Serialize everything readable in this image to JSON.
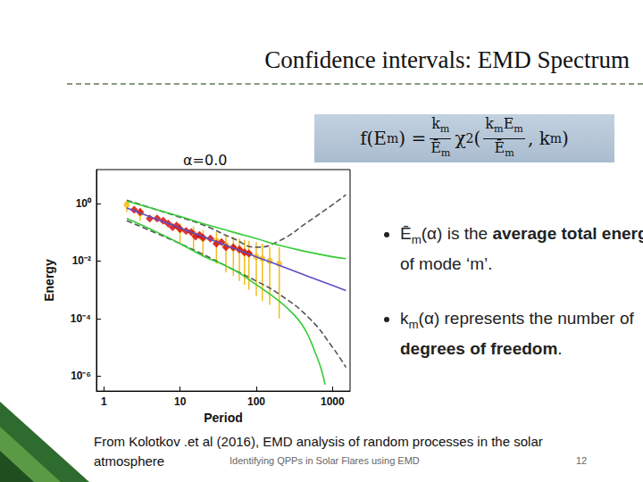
{
  "slide": {
    "title": "Confidence intervals: EMD Spectrum",
    "formula": [
      {
        "text": "f(E"
      },
      {
        "sub": "m"
      },
      {
        "text": ") = "
      },
      {
        "frac": {
          "num": [
            {
              "text": "k"
            },
            {
              "sub": "m"
            }
          ],
          "den": [
            {
              "text": "Ē"
            },
            {
              "sub": "m"
            }
          ]
        }
      },
      {
        "text": "χ"
      },
      {
        "sup": "2"
      },
      {
        "text": " ("
      },
      {
        "frac": {
          "num": [
            {
              "text": "k"
            },
            {
              "sub": "m"
            },
            {
              "text": "E"
            },
            {
              "sub": "m"
            }
          ],
          "den": [
            {
              "text": "Ē"
            },
            {
              "sub": "m"
            }
          ]
        }
      },
      {
        "text": ", k"
      },
      {
        "sub": "m"
      },
      {
        "text": ")"
      }
    ],
    "bullets": [
      [
        {
          "text": "Ē"
        },
        {
          "sub": "m"
        },
        {
          "text": "(α) is the "
        },
        {
          "bold": "average total energy"
        },
        {
          "text": " of mode ‘m’."
        }
      ],
      [
        {
          "text": "k"
        },
        {
          "sub": "m"
        },
        {
          "text": "(α) represents the number of "
        },
        {
          "bold": "degrees of freedom"
        },
        {
          "text": "."
        }
      ]
    ],
    "source": "From Kolotkov .et al (2016), EMD analysis of random processes in the solar atmosphere",
    "footer": "Identifying QPPs in Solar Flares using EMD",
    "page": "12"
  },
  "chart_data": {
    "type": "scatter",
    "title": "α=0.0",
    "x_label": "Period",
    "y_label": "Energy",
    "log": true,
    "grid": false,
    "xlim": [
      0.8,
      1700
    ],
    "xticks": [
      1,
      10,
      100,
      1000
    ],
    "ylim": [
      3e-07,
      15
    ],
    "yticks": [
      {
        "value": 1,
        "label": "10⁰"
      },
      {
        "value": 0.01,
        "label": "10⁻²"
      },
      {
        "value": 0.0001,
        "label": "10⁻⁴"
      },
      {
        "value": 1e-06,
        "label": "10⁻⁶"
      }
    ],
    "series": [
      {
        "type": "scatter",
        "marker": "circle",
        "color": "#f2bd1d",
        "x": [
          2,
          3,
          10,
          15,
          20,
          30,
          40,
          50,
          60,
          70,
          80,
          100,
          120,
          150,
          200
        ],
        "values": [
          0.9,
          0.45,
          0.12,
          0.09,
          0.06,
          0.05,
          0.035,
          0.028,
          0.025,
          0.02,
          0.018,
          0.014,
          0.012,
          0.01,
          0.008
        ],
        "error_low": [
          0.5,
          0.25,
          0.04,
          0.025,
          0.015,
          0.008,
          0.004,
          0.003,
          0.002,
          0.0015,
          0.001,
          0.0006,
          0.0004,
          0.0003,
          0.0001
        ],
        "error_high": [
          1.2,
          0.7,
          0.2,
          0.16,
          0.12,
          0.1,
          0.08,
          0.07,
          0.06,
          0.055,
          0.05,
          0.045,
          0.04,
          0.03,
          0.03
        ]
      },
      {
        "type": "line",
        "line_style": "dashed",
        "color": "#555555",
        "x": [
          2,
          5,
          10,
          20,
          50,
          100,
          200,
          500,
          1000,
          1500
        ],
        "values": [
          1.3,
          0.6,
          0.33,
          0.18,
          0.06,
          0.03,
          0.05,
          0.25,
          0.9,
          2
        ]
      },
      {
        "type": "line",
        "line_style": "dashed",
        "color": "#555555",
        "x": [
          2,
          5,
          10,
          20,
          50,
          100,
          200,
          500,
          1000,
          1500
        ],
        "values": [
          0.25,
          0.09,
          0.04,
          0.017,
          0.005,
          0.002,
          0.0007,
          0.0001,
          1e-05,
          2e-06
        ]
      },
      {
        "type": "line",
        "line_style": "solid",
        "color": "#33cc33",
        "x": [
          2,
          5,
          10,
          20,
          50,
          100,
          200,
          500,
          1000,
          1500
        ],
        "values": [
          1.2,
          0.6,
          0.35,
          0.2,
          0.1,
          0.06,
          0.035,
          0.02,
          0.014,
          0.012
        ]
      },
      {
        "type": "line",
        "line_style": "solid",
        "color": "#33cc33",
        "x": [
          2,
          5,
          10,
          20,
          50,
          100,
          200,
          300,
          400,
          500,
          600,
          700,
          800
        ],
        "values": [
          0.3,
          0.1,
          0.04,
          0.015,
          0.005,
          0.0015,
          0.0004,
          0.00015,
          6e-05,
          2e-05,
          6e-06,
          2e-06,
          5e-07
        ]
      },
      {
        "type": "line",
        "line_style": "solid",
        "color": "#5b4fc7",
        "x": [
          2,
          5,
          10,
          20,
          50,
          100,
          200,
          500,
          1000,
          1500
        ],
        "values": [
          0.7,
          0.28,
          0.14,
          0.07,
          0.028,
          0.014,
          0.007,
          0.0028,
          0.0014,
          0.00093
        ]
      },
      {
        "type": "scatter",
        "marker": "diamond",
        "color": "#d40000",
        "x": [
          2.5,
          3,
          4,
          5,
          6,
          7,
          8,
          9,
          10,
          12,
          14,
          16,
          18,
          20,
          25,
          30,
          35,
          40,
          50,
          60,
          70,
          80
        ],
        "values": [
          0.6,
          0.5,
          0.3,
          0.3,
          0.25,
          0.2,
          0.15,
          0.17,
          0.13,
          0.11,
          0.1,
          0.07,
          0.08,
          0.065,
          0.06,
          0.04,
          0.045,
          0.03,
          0.03,
          0.025,
          0.02,
          0.018
        ]
      }
    ]
  }
}
